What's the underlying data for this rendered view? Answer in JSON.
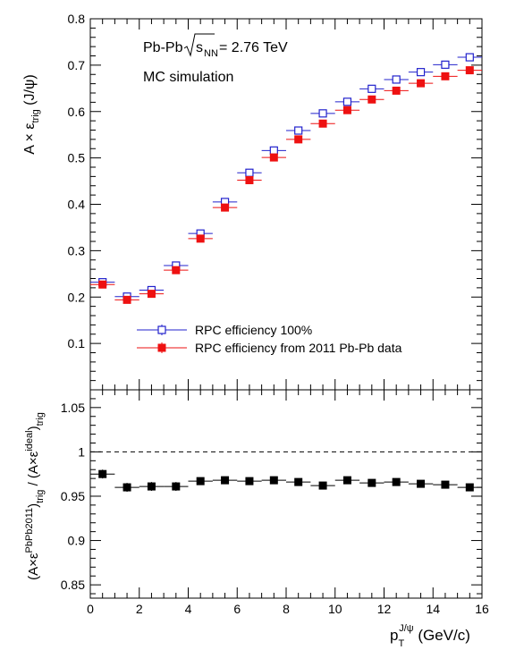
{
  "chart_data": [
    {
      "type": "scatter",
      "panel": "top",
      "annotations": [
        "Pb-Pb",
        "= 2.76 TeV",
        "MC simulation"
      ],
      "sqrt_s_label": "s",
      "sqrt_s_sub": "NN",
      "ylabel_parts": {
        "main": "A × ε",
        "sub": "trig",
        "tail": " (J/ψ)"
      },
      "ylim": [
        0,
        0.8
      ],
      "yticks": [
        0.1,
        0.2,
        0.3,
        0.4,
        0.5,
        0.6,
        0.7,
        0.8
      ],
      "ytick_labels": [
        "0.1",
        "0.2",
        "0.3",
        "0.4",
        "0.5",
        "0.6",
        "0.7",
        "0.8"
      ],
      "xlim": [
        0,
        16
      ],
      "x": [
        0.5,
        1.5,
        2.5,
        3.5,
        4.5,
        5.5,
        6.5,
        7.5,
        8.5,
        9.5,
        10.5,
        11.5,
        12.5,
        13.5,
        14.5,
        15.5
      ],
      "series": [
        {
          "name": "RPC efficiency 100%",
          "color": "#2222cc",
          "marker": "open-square",
          "values": [
            0.232,
            0.201,
            0.215,
            0.268,
            0.337,
            0.405,
            0.468,
            0.516,
            0.559,
            0.596,
            0.621,
            0.649,
            0.669,
            0.685,
            0.701,
            0.717
          ]
        },
        {
          "name": "RPC efficiency from 2011 Pb-Pb data",
          "color": "#ee1111",
          "marker": "filled-square",
          "values": [
            0.227,
            0.194,
            0.207,
            0.258,
            0.326,
            0.393,
            0.452,
            0.501,
            0.54,
            0.574,
            0.603,
            0.626,
            0.645,
            0.661,
            0.676,
            0.689
          ]
        }
      ]
    },
    {
      "type": "scatter",
      "panel": "bottom",
      "ylabel_parts": {
        "open": "(A×ε",
        "sup1": "PbPb2011",
        "close1": ")",
        "sub1": "trig",
        "mid": " / (A×ε",
        "sup2": "ideal",
        "close2": ")",
        "sub2": "trig"
      },
      "xlabel_parts": {
        "p": "p",
        "sub": "T",
        "sup": "J/ψ",
        "tail": " (GeV/c)"
      },
      "ylim": [
        0.835,
        1.07
      ],
      "yticks": [
        0.85,
        0.9,
        0.95,
        1.0,
        1.05
      ],
      "ytick_labels": [
        "0.85",
        "0.9",
        "0.95",
        "1",
        "1.05"
      ],
      "xlim": [
        0,
        16
      ],
      "xticks": [
        0,
        2,
        4,
        6,
        8,
        10,
        12,
        14,
        16
      ],
      "xtick_labels": [
        "0",
        "2",
        "4",
        "6",
        "8",
        "10",
        "12",
        "14",
        "16"
      ],
      "reference_line": 1.0,
      "x": [
        0.5,
        1.5,
        2.5,
        3.5,
        4.5,
        5.5,
        6.5,
        7.5,
        8.5,
        9.5,
        10.5,
        11.5,
        12.5,
        13.5,
        14.5,
        15.5
      ],
      "series": [
        {
          "color": "#000000",
          "marker": "filled-square",
          "values": [
            0.975,
            0.96,
            0.961,
            0.961,
            0.967,
            0.968,
            0.967,
            0.968,
            0.966,
            0.962,
            0.968,
            0.965,
            0.966,
            0.964,
            0.963,
            0.96
          ],
          "errors": [
            0.005,
            0.005,
            0.005,
            0.005,
            0.004,
            0.004,
            0.004,
            0.004,
            0.004,
            0.004,
            0.004,
            0.004,
            0.004,
            0.004,
            0.004,
            0.004
          ]
        }
      ]
    }
  ]
}
